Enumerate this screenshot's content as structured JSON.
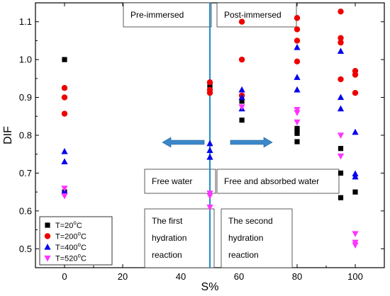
{
  "chart_data": {
    "type": "scatter",
    "title": "",
    "xlabel": "S%",
    "ylabel": "DIF",
    "xlim": [
      -10,
      110
    ],
    "ylim": [
      0.45,
      1.15
    ],
    "xticks": [
      "0",
      "20",
      "40",
      "60",
      "80",
      "100"
    ],
    "yticks": [
      "0.5",
      "0.6",
      "0.7",
      "0.8",
      "0.9",
      "1.0",
      "1.1"
    ],
    "grid": false,
    "legend_position": "bottom-left",
    "divider_x": 50,
    "divider_color": "#2e8fc9",
    "arrow_color": "#3a87c9",
    "series": [
      {
        "name": "T=20°C",
        "legend_main": "T=20",
        "legend_sup": "o",
        "legend_unit": "C",
        "marker": "square",
        "color": "#000000",
        "x": [
          0,
          0,
          50,
          50,
          61,
          61,
          80,
          80,
          80,
          80,
          95,
          95,
          95,
          100
        ],
        "y": [
          1.0,
          0.65,
          0.935,
          0.925,
          0.89,
          0.84,
          0.818,
          0.812,
          0.805,
          0.783,
          0.765,
          0.7,
          0.635,
          0.65
        ]
      },
      {
        "name": "T=200°C",
        "legend_main": "T=200",
        "legend_sup": "o",
        "legend_unit": "C",
        "marker": "circle",
        "color": "#ee0000",
        "x": [
          0,
          0,
          0,
          50,
          50,
          50,
          61,
          61,
          61,
          80,
          80,
          80,
          80,
          95,
          95,
          95,
          95,
          100,
          100,
          100
        ],
        "y": [
          0.925,
          0.9,
          0.857,
          0.94,
          0.92,
          0.912,
          1.1,
          1.0,
          0.905,
          1.11,
          1.08,
          1.05,
          0.995,
          1.127,
          1.057,
          1.045,
          0.948,
          0.97,
          0.96,
          0.912
        ]
      },
      {
        "name": "T=400°C",
        "legend_main": "T=400",
        "legend_sup": "o",
        "legend_unit": "C",
        "marker": "triangle-up",
        "color": "#0000ee",
        "x": [
          0,
          0,
          0,
          50,
          50,
          50,
          61,
          61,
          61,
          80,
          80,
          80,
          95,
          95,
          95,
          100,
          100,
          100
        ],
        "y": [
          0.757,
          0.73,
          0.652,
          0.778,
          0.76,
          0.742,
          0.92,
          0.9,
          0.87,
          1.032,
          0.953,
          0.92,
          1.022,
          0.9,
          0.87,
          0.808,
          0.698,
          0.69
        ]
      },
      {
        "name": "T=520°C",
        "legend_main": "T=520",
        "legend_sup": "o",
        "legend_unit": "C",
        "marker": "triangle-down",
        "color": "#ff33ff",
        "x": [
          0,
          0,
          50,
          50,
          50,
          61,
          80,
          80,
          80,
          95,
          95,
          100,
          100,
          100
        ],
        "y": [
          0.66,
          0.64,
          0.647,
          0.64,
          0.61,
          0.875,
          0.868,
          0.86,
          0.835,
          0.8,
          0.745,
          0.54,
          0.517,
          0.51
        ]
      }
    ],
    "annotations": {
      "pre_immersed": "Pre-immersed",
      "post_immersed": "Post-immersed",
      "free_water": "Free water",
      "free_absorbed": "Free and absorbed water",
      "first_reaction": [
        "The first",
        "hydration",
        "reaction"
      ],
      "second_reaction": [
        "The second",
        "hydration",
        "reaction"
      ]
    }
  }
}
